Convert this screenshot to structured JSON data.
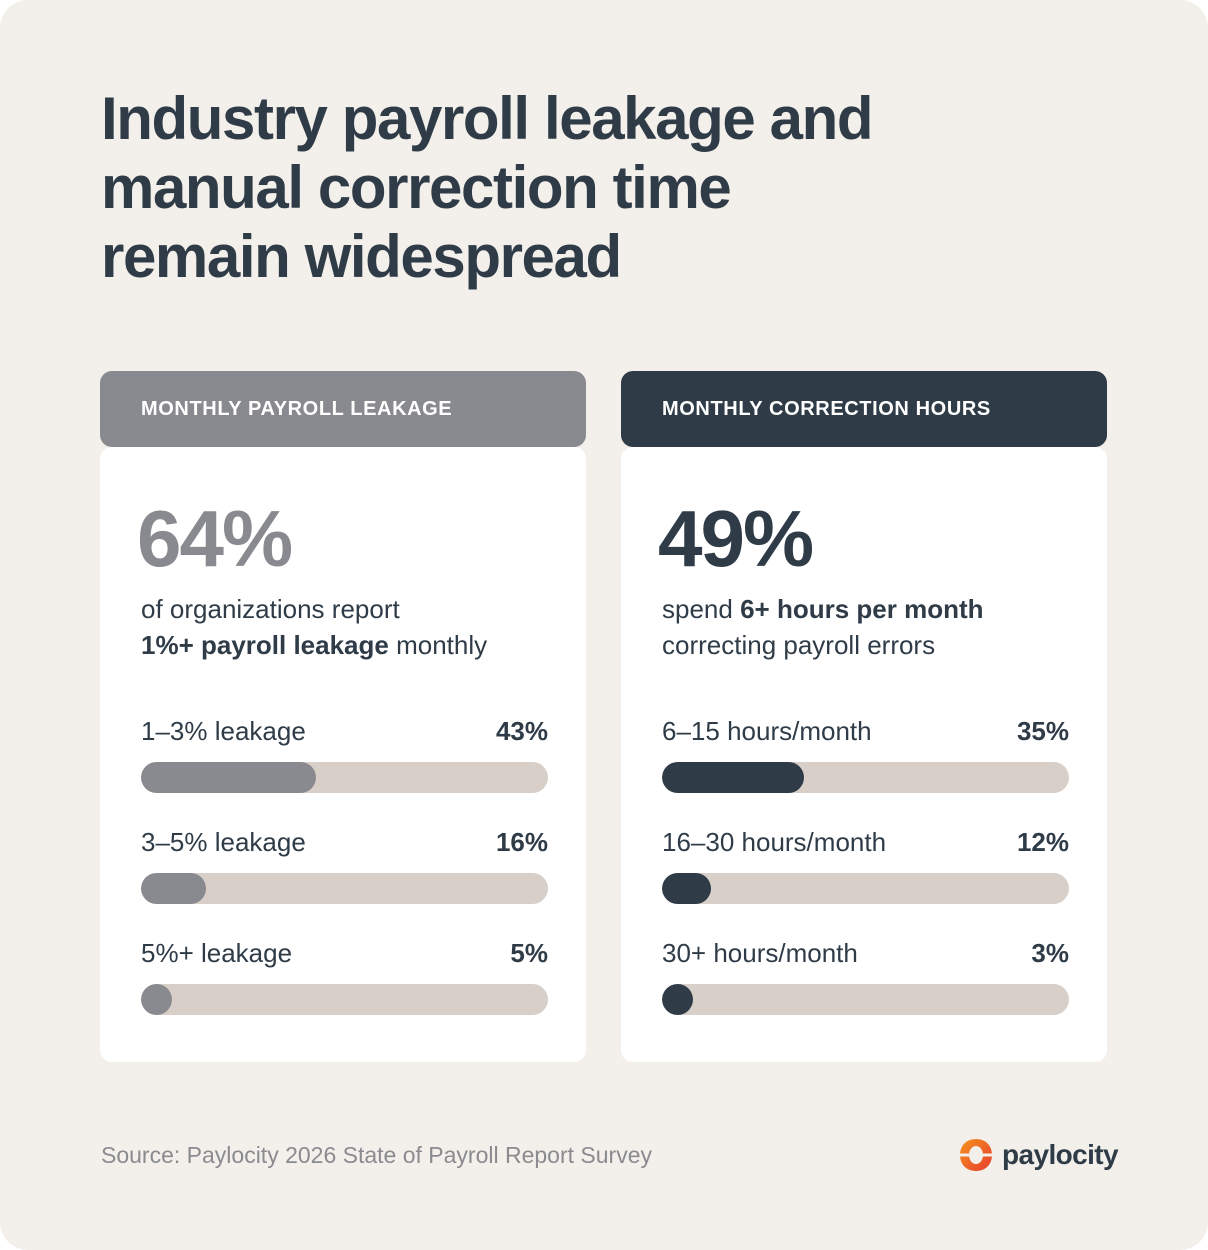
{
  "title": "Industry payroll leakage and manual correction time remain widespread",
  "panels": [
    {
      "header": "MONTHLY PAYROLL LEAKAGE",
      "big_stat": "64%",
      "desc_line1": "of organizations report",
      "desc_bold": "1%+ payroll leakage",
      "desc_rest": " monthly",
      "color": "#898a8f",
      "rows": [
        {
          "label": "1–3% leakage",
          "value": "43%",
          "pct": 43
        },
        {
          "label": "3–5% leakage",
          "value": "16%",
          "pct": 16
        },
        {
          "label": "5%+ leakage",
          "value": "5%",
          "pct": 5
        }
      ]
    },
    {
      "header": "MONTHLY CORRECTION HOURS",
      "big_stat": "49%",
      "desc_pre": "spend ",
      "desc_bold": "6+ hours per month",
      "desc_line2": "correcting payroll errors",
      "color": "#2f3c48",
      "rows": [
        {
          "label": "6–15 hours/month",
          "value": "35%",
          "pct": 35
        },
        {
          "label": "16–30 hours/month",
          "value": "12%",
          "pct": 12
        },
        {
          "label": "30+ hours/month",
          "value": "3%",
          "pct": 3
        }
      ]
    }
  ],
  "source": "Source: Paylocity 2026 State of Payroll Report Survey",
  "logo": {
    "text": "paylocity",
    "icon": "paylocity-logo-icon"
  },
  "colors": {
    "background": "#f3f0eb",
    "dark": "#2f3c48",
    "gray": "#898a8f",
    "track": "#d8d0c8",
    "logo_orange": "#f26b1d",
    "logo_red": "#e63c2f"
  },
  "chart_data": [
    {
      "type": "bar",
      "orientation": "horizontal",
      "title": "MONTHLY PAYROLL LEAKAGE",
      "headline": "64% of organizations report 1%+ payroll leakage monthly",
      "categories": [
        "1–3% leakage",
        "3–5% leakage",
        "5%+ leakage"
      ],
      "values": [
        43,
        16,
        5
      ],
      "unit": "%",
      "xlim": [
        0,
        100
      ],
      "grid": false
    },
    {
      "type": "bar",
      "orientation": "horizontal",
      "title": "MONTHLY CORRECTION HOURS",
      "headline": "49% spend 6+ hours per month correcting payroll errors",
      "categories": [
        "6–15 hours/month",
        "16–30 hours/month",
        "30+ hours/month"
      ],
      "values": [
        35,
        12,
        3
      ],
      "unit": "%",
      "xlim": [
        0,
        100
      ],
      "grid": false
    }
  ]
}
